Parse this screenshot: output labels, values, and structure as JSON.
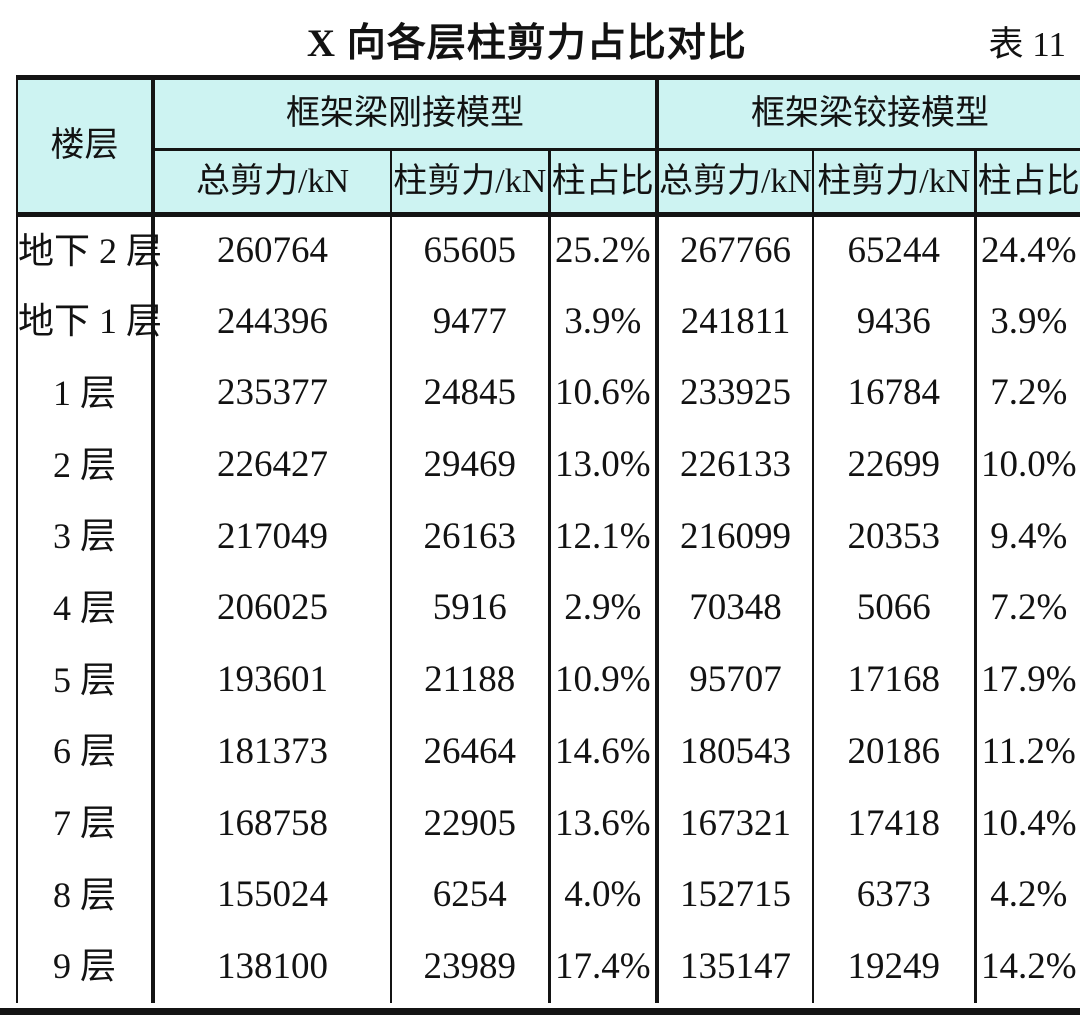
{
  "title": "X 向各层柱剪力占比对比",
  "table_label": "表 11",
  "colors": {
    "header_bg": "#cdf3f2",
    "border": "#141414",
    "text": "#121212"
  },
  "table": {
    "header": {
      "floor": "楼层",
      "group_rigid": "框架梁刚接模型",
      "group_hinged": "框架梁铰接模型",
      "sub_total": "总剪力/kN",
      "sub_column": "柱剪力/kN",
      "sub_ratio": "柱占比"
    },
    "rows": [
      {
        "floor": "地下 2 层",
        "rigid_total": "260764",
        "rigid_column": "65605",
        "rigid_ratio": "25.2%",
        "hinged_total": "267766",
        "hinged_column": "65244",
        "hinged_ratio": "24.4%"
      },
      {
        "floor": "地下 1 层",
        "rigid_total": "244396",
        "rigid_column": "9477",
        "rigid_ratio": "3.9%",
        "hinged_total": "241811",
        "hinged_column": "9436",
        "hinged_ratio": "3.9%"
      },
      {
        "floor": "1 层",
        "rigid_total": "235377",
        "rigid_column": "24845",
        "rigid_ratio": "10.6%",
        "hinged_total": "233925",
        "hinged_column": "16784",
        "hinged_ratio": "7.2%"
      },
      {
        "floor": "2 层",
        "rigid_total": "226427",
        "rigid_column": "29469",
        "rigid_ratio": "13.0%",
        "hinged_total": "226133",
        "hinged_column": "22699",
        "hinged_ratio": "10.0%"
      },
      {
        "floor": "3 层",
        "rigid_total": "217049",
        "rigid_column": "26163",
        "rigid_ratio": "12.1%",
        "hinged_total": "216099",
        "hinged_column": "20353",
        "hinged_ratio": "9.4%"
      },
      {
        "floor": "4 层",
        "rigid_total": "206025",
        "rigid_column": "5916",
        "rigid_ratio": "2.9%",
        "hinged_total": "70348",
        "hinged_column": "5066",
        "hinged_ratio": "7.2%"
      },
      {
        "floor": "5 层",
        "rigid_total": "193601",
        "rigid_column": "21188",
        "rigid_ratio": "10.9%",
        "hinged_total": "95707",
        "hinged_column": "17168",
        "hinged_ratio": "17.9%"
      },
      {
        "floor": "6 层",
        "rigid_total": "181373",
        "rigid_column": "26464",
        "rigid_ratio": "14.6%",
        "hinged_total": "180543",
        "hinged_column": "20186",
        "hinged_ratio": "11.2%"
      },
      {
        "floor": "7 层",
        "rigid_total": "168758",
        "rigid_column": "22905",
        "rigid_ratio": "13.6%",
        "hinged_total": "167321",
        "hinged_column": "17418",
        "hinged_ratio": "10.4%"
      },
      {
        "floor": "8 层",
        "rigid_total": "155024",
        "rigid_column": "6254",
        "rigid_ratio": "4.0%",
        "hinged_total": "152715",
        "hinged_column": "6373",
        "hinged_ratio": "4.2%"
      },
      {
        "floor": "9 层",
        "rigid_total": "138100",
        "rigid_column": "23989",
        "rigid_ratio": "17.4%",
        "hinged_total": "135147",
        "hinged_column": "19249",
        "hinged_ratio": "14.2%"
      }
    ]
  }
}
